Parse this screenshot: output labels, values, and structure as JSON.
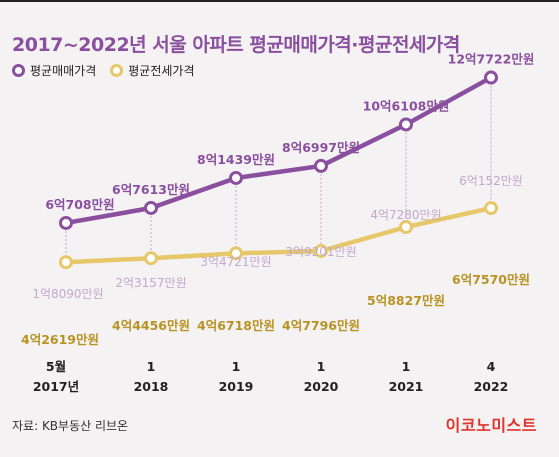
{
  "title": "2017~2022년 서울 아파트 평균매매가격·평균전세가격",
  "source": "자료: KB부동산 리브온",
  "brand": "이코노미스트",
  "colors": {
    "sale": "#8a4f9e",
    "jeonse": "#e6c76a",
    "gap": "#c3a8cf",
    "jeonse_label": "#b89324"
  },
  "chart_data": {
    "type": "line",
    "x": [
      {
        "month": "5월",
        "year": "2017년"
      },
      {
        "month": "1",
        "year": "2018"
      },
      {
        "month": "1",
        "year": "2019"
      },
      {
        "month": "1",
        "year": "2020"
      },
      {
        "month": "1",
        "year": "2021"
      },
      {
        "month": "4",
        "year": "2022"
      }
    ],
    "series": [
      {
        "name": "평균매매가격",
        "values": [
          60708,
          67613,
          81439,
          86997,
          106108,
          127722
        ],
        "labels": [
          "6억708만원",
          "6억7613만원",
          "8억1439만원",
          "8억6997만원",
          "10억6108만원",
          "12억7722만원"
        ]
      },
      {
        "name": "평균전세가격",
        "values": [
          42619,
          44456,
          46718,
          47796,
          58827,
          67570
        ],
        "labels": [
          "4억2619만원",
          "4억4456만원",
          "4억6718만원",
          "4억7796만원",
          "5억8827만원",
          "6억7570만원"
        ]
      }
    ],
    "gap_labels": [
      "1억8090만원",
      "2억3157만원",
      "3억4721만원",
      "3억9201만원",
      "4억7280만원",
      "6억152만원"
    ],
    "unit": "만원",
    "grid": false,
    "legend_position": "top-left"
  }
}
